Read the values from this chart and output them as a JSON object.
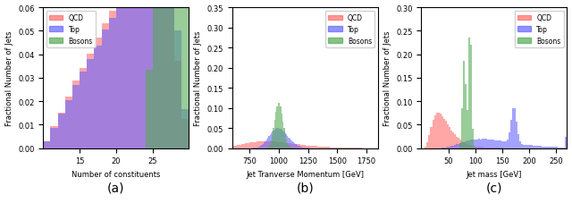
{
  "fig_width": 6.4,
  "fig_height": 2.28,
  "dpi": 100,
  "ylabel": "Fractional Number of Jets",
  "colors": {
    "QCD": "#FF6B6B",
    "Top": "#6666FF",
    "Bosons": "#55AA55"
  },
  "legend_labels": [
    "QCD",
    "Top",
    "Bosons"
  ],
  "panel_labels": [
    "(a)",
    "(b)",
    "(c)"
  ],
  "panel_a": {
    "xlabel": "Number of constituents",
    "xlim": [
      10,
      30
    ],
    "ylim": [
      0,
      0.06
    ],
    "yticks": [
      0.0,
      0.01,
      0.02,
      0.03,
      0.04,
      0.05,
      0.06
    ],
    "xticks": [
      15,
      20,
      25
    ],
    "bins": 20
  },
  "panel_b": {
    "xlabel": "Jet Tranverse Momentum [GeV]",
    "xlim": [
      600,
      1850
    ],
    "ylim": [
      0,
      0.35
    ],
    "yticks": [
      0.0,
      0.05,
      0.1,
      0.15,
      0.2,
      0.25,
      0.3,
      0.35
    ],
    "xticks": [
      750,
      1000,
      1250,
      1500,
      1750
    ],
    "bins": 130
  },
  "panel_c": {
    "xlabel": "Jet mass [GeV]",
    "xlim": [
      0,
      270
    ],
    "ylim": [
      0,
      0.3
    ],
    "yticks": [
      0.0,
      0.05,
      0.1,
      0.15,
      0.2,
      0.25,
      0.3
    ],
    "xticks": [
      50,
      100,
      150,
      200,
      250
    ],
    "bins": 80
  },
  "seed": 42,
  "n_samples": 200000
}
